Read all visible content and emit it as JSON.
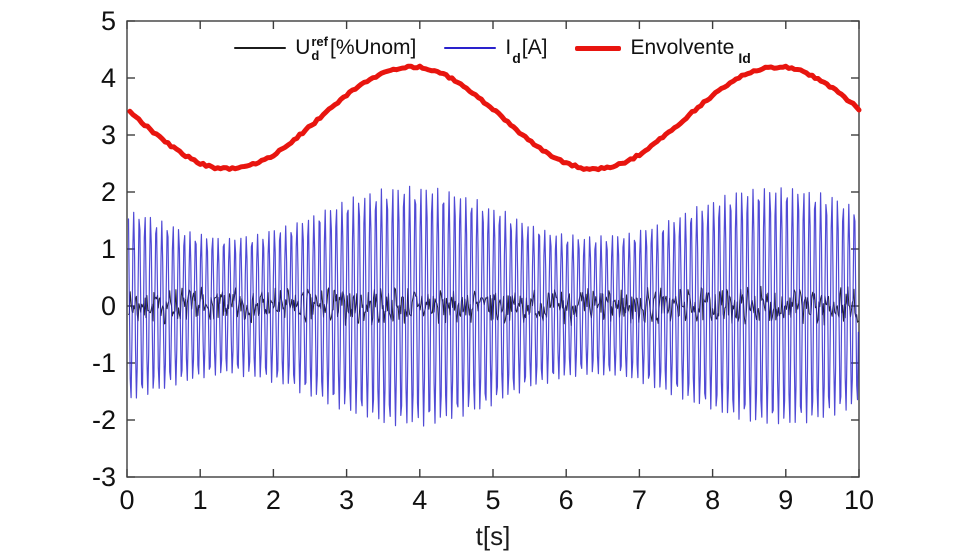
{
  "figure": {
    "background": "#ffffff",
    "axis_color": "#3d3d3d",
    "tick_label_color": "#111111"
  },
  "chart_data": {
    "type": "line",
    "title": "",
    "xlabel": "t[s]",
    "ylabel": "",
    "xlim": [
      0,
      10
    ],
    "ylim": [
      -3,
      5
    ],
    "xticks": [
      0,
      1,
      2,
      3,
      4,
      5,
      6,
      7,
      8,
      9,
      10
    ],
    "yticks": [
      -3,
      -2,
      -1,
      0,
      1,
      2,
      3,
      4,
      5
    ],
    "grid": false,
    "legend_position": "top-center-inside",
    "render": {
      "seed": 7,
      "sample_dt": 0.012,
      "envelope_dt": 0.04
    },
    "series": [
      {
        "name": "Ud_ref",
        "legend": {
          "main": "U",
          "sup": "ref",
          "sub": "d",
          "rest": "[%Unom]"
        },
        "kind": "noise",
        "color": "#1c1c1c",
        "line_width": 1,
        "mean": 0,
        "noise_amplitude": 0.25,
        "sine_amplitude": 0.1,
        "sine_hz": 11
      },
      {
        "name": "Id",
        "legend": {
          "main": "I",
          "sub": "d",
          "rest": "[A]"
        },
        "kind": "am_oscillation",
        "color": "#2a22cc",
        "line_width": 1.2,
        "carrier_hz": 13,
        "phase": 0.4,
        "envelope_ratio": 0.5,
        "noise_amplitude": 0.03,
        "peak_amplitude_max": 2.05,
        "peak_amplitude_min": 1.2
      },
      {
        "name": "Envolvente_Id",
        "legend": {
          "main": "Envolvente",
          "sub": "Id"
        },
        "kind": "envelope",
        "color": "#e8150f",
        "line_width": 5,
        "x_step": 0.25,
        "noise_amplitude": 0.02,
        "values": [
          3.45,
          3.17,
          2.9,
          2.67,
          2.5,
          2.41,
          2.41,
          2.49,
          2.65,
          2.88,
          3.15,
          3.43,
          3.7,
          3.93,
          4.1,
          4.19,
          4.19,
          4.11,
          3.95,
          3.72,
          3.45,
          3.17,
          2.9,
          2.67,
          2.5,
          2.41,
          2.41,
          2.49,
          2.65,
          2.89,
          3.15,
          3.43,
          3.7,
          3.93,
          4.1,
          4.19,
          4.19,
          4.11,
          3.94,
          3.72,
          3.45
        ]
      }
    ]
  }
}
